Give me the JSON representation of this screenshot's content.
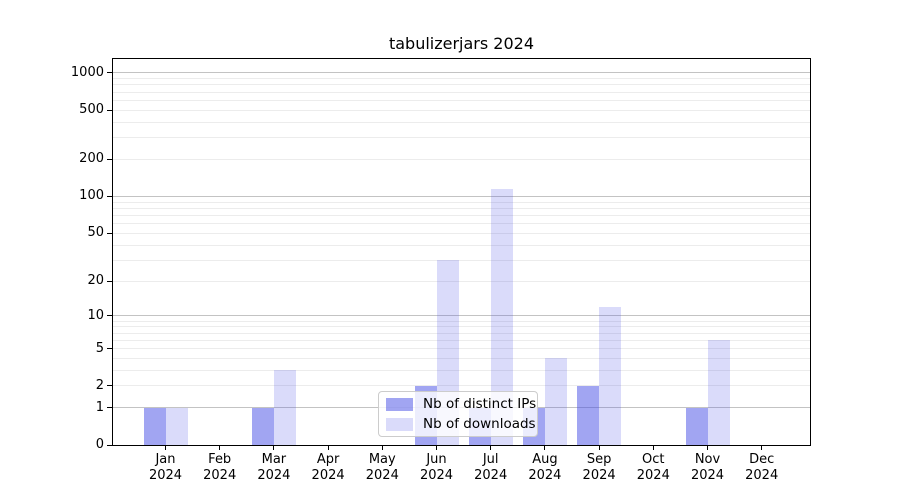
{
  "title": "tabulizerjars 2024",
  "chart_data": {
    "type": "bar",
    "title": "tabulizerjars 2024",
    "year": "2024",
    "months": [
      "Jan",
      "Feb",
      "Mar",
      "Apr",
      "May",
      "Jun",
      "Jul",
      "Aug",
      "Sep",
      "Oct",
      "Nov",
      "Dec"
    ],
    "series": [
      {
        "name": "Nb of distinct IPs",
        "color": "rgba(68,76,230,0.5)",
        "values": [
          1,
          0,
          1,
          0,
          0,
          2,
          1,
          1,
          2,
          0,
          1,
          0
        ]
      },
      {
        "name": "Nb of downloads",
        "color": "rgba(68,76,230,0.2)",
        "values": [
          1,
          0,
          3,
          0,
          0,
          30,
          115,
          4,
          12,
          0,
          6,
          0
        ]
      }
    ],
    "y_axis": {
      "scale": "log1p",
      "tick_values": [
        0,
        1,
        2,
        5,
        10,
        20,
        50,
        100,
        200,
        500,
        1000
      ],
      "major_gridlines": [
        1,
        10,
        100,
        1000
      ],
      "minor_gridlines": [
        2,
        3,
        4,
        5,
        6,
        7,
        8,
        9,
        20,
        30,
        40,
        50,
        60,
        70,
        80,
        90,
        200,
        300,
        400,
        500,
        600,
        700,
        800,
        900
      ],
      "range_top": 1300
    },
    "xlabel": "",
    "ylabel": "",
    "grid": true,
    "legend_position": "lower center-left",
    "colors": {
      "grid_major": "#c3c3c3",
      "grid_minor": "#ececec",
      "axis": "#000000",
      "background": "#ffffff"
    }
  }
}
